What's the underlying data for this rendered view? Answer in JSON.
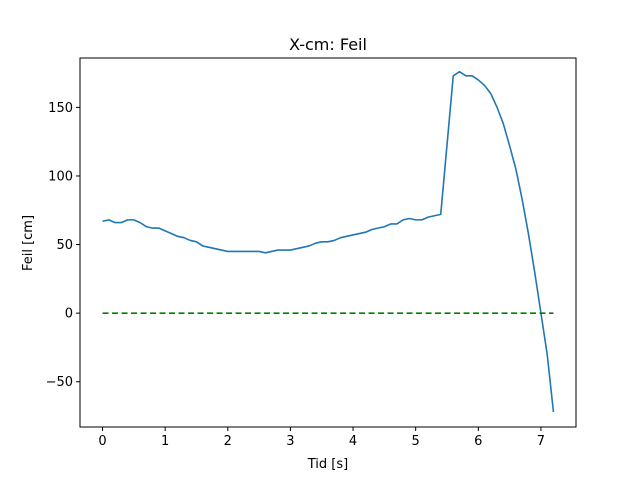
{
  "chart_data": {
    "type": "line",
    "title": "X-cm: Feil",
    "xlabel": "Tid [s]",
    "ylabel": "Feil [cm]",
    "xlim": [
      -0.36,
      7.56
    ],
    "ylim": [
      -83,
      186
    ],
    "xticks": [
      0,
      1,
      2,
      3,
      4,
      5,
      6,
      7
    ],
    "yticks": [
      -50,
      0,
      50,
      100,
      150
    ],
    "xtick_labels": [
      "0",
      "1",
      "2",
      "3",
      "4",
      "5",
      "6",
      "7"
    ],
    "ytick_labels": [
      "−50",
      "0",
      "50",
      "100",
      "150"
    ],
    "grid": false,
    "colors": {
      "series": "#1f77b4",
      "reference": "#008000"
    },
    "series": [
      {
        "style": "solid",
        "color": "#1f77b4",
        "x": [
          0.0,
          0.1,
          0.2,
          0.3,
          0.4,
          0.5,
          0.6,
          0.7,
          0.8,
          0.9,
          1.0,
          1.1,
          1.2,
          1.3,
          1.4,
          1.5,
          1.6,
          1.7,
          1.8,
          1.9,
          2.0,
          2.1,
          2.2,
          2.3,
          2.4,
          2.5,
          2.6,
          2.7,
          2.8,
          2.9,
          3.0,
          3.1,
          3.2,
          3.3,
          3.4,
          3.5,
          3.6,
          3.7,
          3.8,
          3.9,
          4.0,
          4.1,
          4.2,
          4.3,
          4.4,
          4.5,
          4.6,
          4.7,
          4.8,
          4.9,
          5.0,
          5.1,
          5.2,
          5.3,
          5.4,
          5.6,
          5.7,
          5.8,
          5.9,
          6.0,
          6.1,
          6.2,
          6.3,
          6.4,
          6.5,
          6.6,
          6.7,
          6.8,
          6.9,
          7.0,
          7.1,
          7.2
        ],
        "y": [
          67,
          68,
          66,
          66,
          68,
          68,
          66,
          63,
          62,
          62,
          60,
          58,
          56,
          55,
          53,
          52,
          49,
          48,
          47,
          46,
          45,
          45,
          45,
          45,
          45,
          45,
          44,
          45,
          46,
          46,
          46,
          47,
          48,
          49,
          51,
          52,
          52,
          53,
          55,
          56,
          57,
          58,
          59,
          61,
          62,
          63,
          65,
          65,
          68,
          69,
          68,
          68,
          70,
          71,
          72,
          173,
          176,
          173,
          173,
          170,
          166,
          160,
          150,
          138,
          122,
          105,
          83,
          58,
          30,
          0,
          -30,
          -72
        ]
      },
      {
        "style": "dashed",
        "color": "#008000",
        "x": [
          0.0,
          7.2
        ],
        "y": [
          0,
          0
        ]
      }
    ]
  }
}
